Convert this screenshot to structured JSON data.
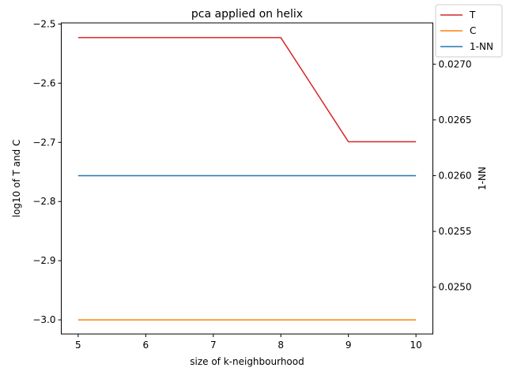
{
  "chart_data": {
    "type": "line",
    "title": "pca applied on helix",
    "xlabel": "size of k-neighbourhood",
    "ylabel": "log10 of T and C",
    "y2label": "1-NN",
    "x": [
      5,
      6,
      7,
      8,
      9,
      10
    ],
    "xlim": [
      4.75,
      10.25
    ],
    "ylim": [
      -3.0239,
      -2.4981
    ],
    "y2lim": [
      0.02458,
      0.02737
    ],
    "x_ticks": [
      "5",
      "6",
      "7",
      "8",
      "9",
      "10"
    ],
    "y_ticks": [
      "−3.0",
      "−2.9",
      "−2.8",
      "−2.7",
      "−2.6",
      "−2.5"
    ],
    "y2_ticks": [
      "0.0250",
      "0.0255",
      "0.0260",
      "0.0265",
      "0.0270"
    ],
    "series": [
      {
        "name": "T",
        "axis": "left",
        "color": "#d62728",
        "values": [
          -2.523,
          -2.523,
          -2.523,
          -2.523,
          -2.699,
          -2.699
        ]
      },
      {
        "name": "C",
        "axis": "left",
        "color": "#ff7f0e",
        "values": [
          -3.0,
          -3.0,
          -3.0,
          -3.0,
          -3.0,
          -3.0
        ]
      },
      {
        "name": "1-NN",
        "axis": "right",
        "color": "#1f77b4",
        "values": [
          0.026,
          0.026,
          0.026,
          0.026,
          0.026,
          0.026
        ]
      }
    ],
    "grid": false,
    "legend_position": "top-right"
  }
}
